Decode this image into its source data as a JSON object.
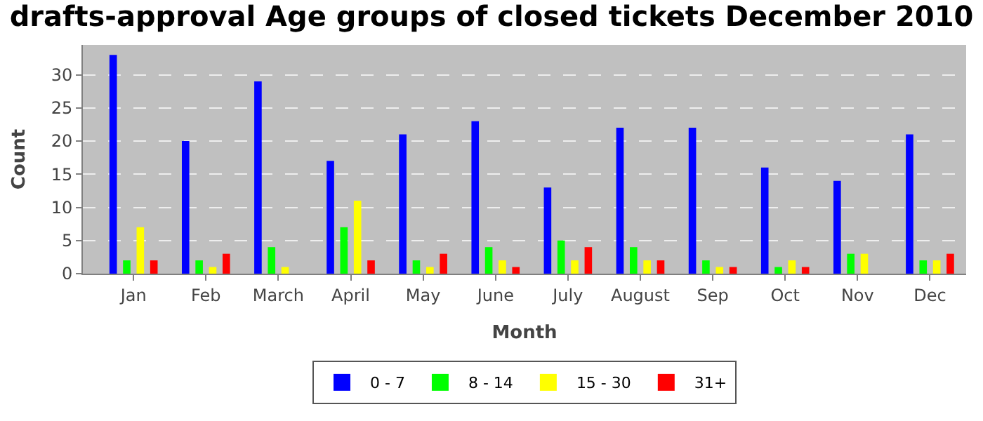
{
  "chart_data": {
    "type": "bar",
    "title": "drafts-approval Age groups of closed tickets December 2010",
    "xlabel": "Month",
    "ylabel": "Count",
    "categories": [
      "Jan",
      "Feb",
      "March",
      "April",
      "May",
      "June",
      "July",
      "August",
      "Sep",
      "Oct",
      "Nov",
      "Dec"
    ],
    "series": [
      {
        "name": "0 - 7",
        "color": "#0000ff",
        "values": [
          33,
          20,
          29,
          17,
          21,
          23,
          13,
          22,
          22,
          16,
          14,
          21
        ]
      },
      {
        "name": "8 - 14",
        "color": "#00ff00",
        "values": [
          2,
          2,
          4,
          7,
          2,
          4,
          5,
          4,
          2,
          1,
          3,
          2
        ]
      },
      {
        "name": "15 - 30",
        "color": "#ffff00",
        "values": [
          7,
          1,
          1,
          11,
          1,
          2,
          2,
          2,
          1,
          2,
          3,
          2
        ]
      },
      {
        "name": "31+",
        "color": "#ff0000",
        "values": [
          2,
          3,
          0,
          2,
          3,
          1,
          4,
          2,
          1,
          1,
          0,
          3
        ]
      }
    ],
    "ylim": [
      0,
      34.5
    ],
    "yticks": [
      0,
      5,
      10,
      15,
      20,
      25,
      30
    ],
    "grid": "y",
    "legend": "bottom"
  }
}
